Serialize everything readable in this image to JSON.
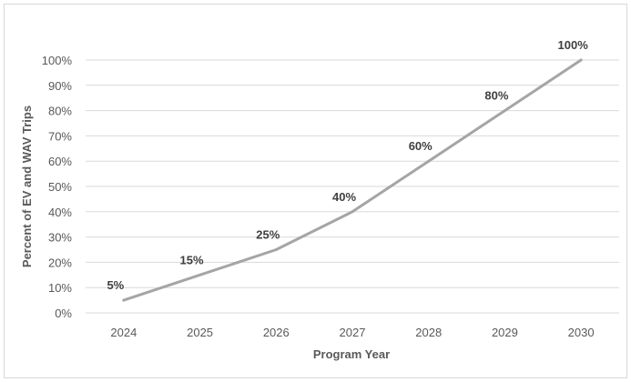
{
  "chart_data": {
    "type": "line",
    "title": "",
    "xlabel": "Program Year",
    "ylabel": "Percent of EV and WAV Trips",
    "x": [
      "2024",
      "2025",
      "2026",
      "2027",
      "2028",
      "2029",
      "2030"
    ],
    "series": [
      {
        "values": [
          5,
          15,
          25,
          40,
          60,
          80,
          100
        ]
      }
    ],
    "data_labels": [
      "5%",
      "15%",
      "25%",
      "40%",
      "60%",
      "80%",
      "100%"
    ],
    "ylim": [
      0,
      100
    ],
    "y_ticks": [
      "0%",
      "10%",
      "20%",
      "30%",
      "40%",
      "50%",
      "60%",
      "70%",
      "80%",
      "90%",
      "100%"
    ],
    "grid": true,
    "legend": "none",
    "colors": {
      "line": "#a5a5a5",
      "grid": "#d9d9d9"
    }
  }
}
